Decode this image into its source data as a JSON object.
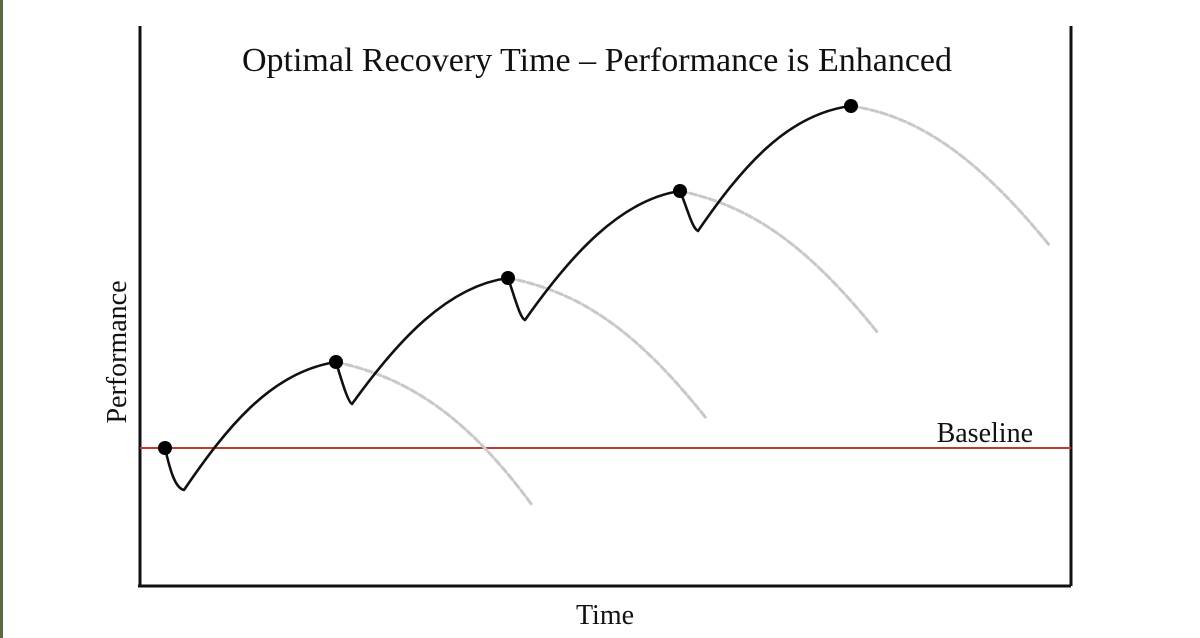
{
  "diagram": {
    "title": "Optimal Recovery Time – Performance is Enhanced",
    "x_axis_label": "Time",
    "y_axis_label": "Performance",
    "baseline_label": "Baseline",
    "colors": {
      "axes": "#111111",
      "curve": "#111111",
      "baseline": "#c0392b",
      "decline": "#c8c8c8",
      "marker": "#000000",
      "edge_strip": "#5c6b3f"
    }
  }
}
